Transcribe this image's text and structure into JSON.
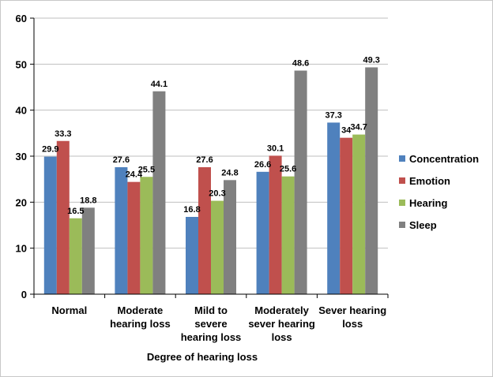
{
  "chart_data": {
    "type": "bar",
    "title": "",
    "xlabel": "Degree of hearing loss",
    "ylabel": "",
    "ylim": [
      0,
      60
    ],
    "yticks": [
      0,
      10,
      20,
      30,
      40,
      50,
      60
    ],
    "grid": "horizontal",
    "legend_position": "right",
    "categories": [
      [
        "Normal"
      ],
      [
        "Moderate",
        "hearing loss"
      ],
      [
        "Mild to",
        "severe",
        "hearing loss"
      ],
      [
        "Moderately",
        "sever hearing",
        "loss"
      ],
      [
        "Sever hearing",
        "loss"
      ]
    ],
    "series": [
      {
        "name": "Concentration",
        "color": "#4F81BD",
        "values": [
          29.9,
          27.6,
          16.8,
          26.6,
          37.3
        ],
        "labels": [
          "29.9",
          "27.6",
          "16.8",
          "26.6",
          "37.3"
        ]
      },
      {
        "name": "Emotion",
        "color": "#C0504D",
        "values": [
          33.3,
          24.4,
          27.6,
          30.1,
          34
        ],
        "labels": [
          "33.3",
          "24.4",
          "27.6",
          "30.1",
          "34"
        ]
      },
      {
        "name": "Hearing",
        "color": "#9BBB59",
        "values": [
          16.5,
          25.5,
          20.3,
          25.6,
          34.7
        ],
        "labels": [
          "16.5",
          "25.5",
          "20.3",
          "25.6",
          "34.7"
        ]
      },
      {
        "name": "Sleep",
        "color": "#808080",
        "values": [
          18.8,
          44.1,
          24.8,
          48.6,
          49.3
        ],
        "labels": [
          "18.8",
          "44.1",
          "24.8",
          "48.6",
          "49.3"
        ]
      }
    ]
  }
}
